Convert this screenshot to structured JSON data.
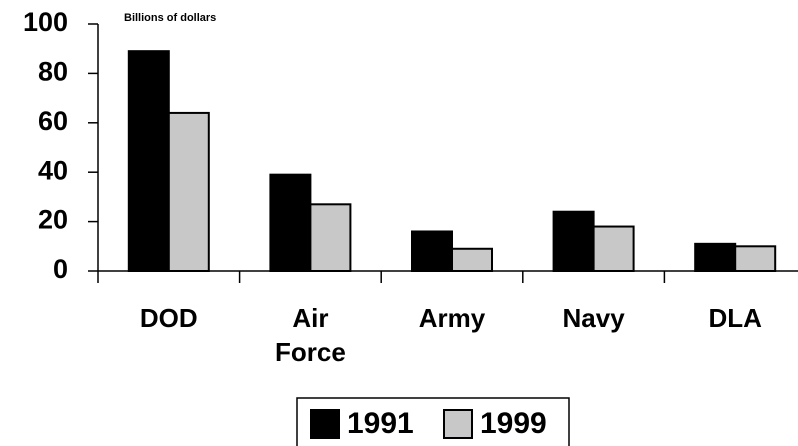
{
  "chart_data": {
    "type": "bar",
    "unit_label": "Billions of dollars",
    "categories": [
      "DOD",
      "Air Force",
      "Army",
      "Navy",
      "DLA"
    ],
    "series": [
      {
        "name": "1991",
        "color": "#000000",
        "values": [
          89,
          39,
          16,
          24,
          11
        ]
      },
      {
        "name": "1999",
        "color": "#c8c8c8",
        "values": [
          64,
          27,
          9,
          18,
          10
        ]
      }
    ],
    "ylim": [
      0,
      100
    ],
    "yticks": [
      0,
      20,
      40,
      60,
      80,
      100
    ],
    "legend": "bottom"
  }
}
